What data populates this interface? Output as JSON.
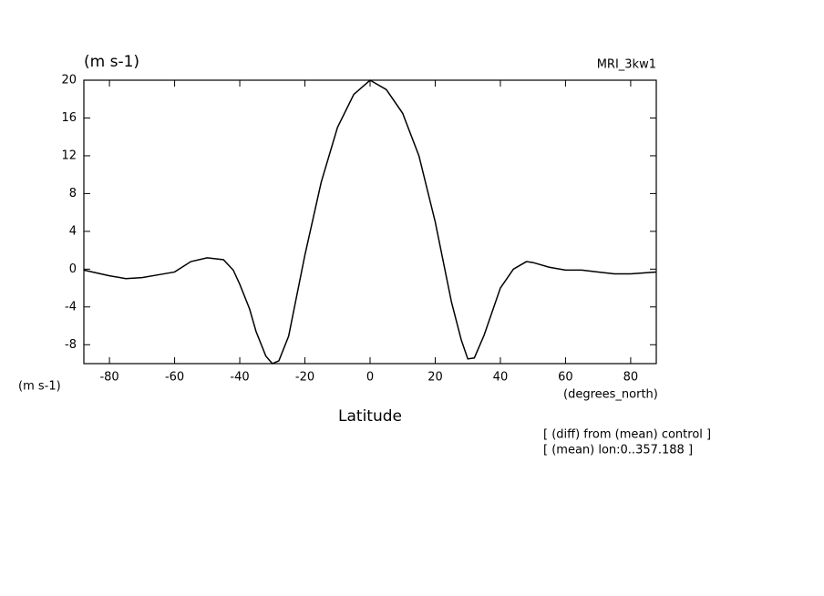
{
  "chart_data": {
    "type": "line",
    "title": "(m s-1)",
    "model": "MRI_3kw1",
    "yunits": "(m s-1)",
    "xunits": "(degrees_north)",
    "xlabel": "Latitude",
    "annotations": [
      "[ (diff) from (mean) control ]",
      "[ (mean) lon:0..357.188 ]"
    ],
    "xlim": [
      -87.86,
      87.86
    ],
    "ylim": [
      -10,
      20
    ],
    "xticks": [
      -80,
      -60,
      -40,
      -20,
      0,
      20,
      40,
      60,
      80
    ],
    "yticks": [
      -8,
      -4,
      0,
      4,
      8,
      12,
      16,
      20
    ],
    "series": [
      {
        "color": "#000000",
        "x": [
          -87.86,
          -80,
          -75,
          -70,
          -65,
          -60,
          -55,
          -50,
          -45,
          -42,
          -40,
          -37,
          -35,
          -32,
          -30,
          -28,
          -25,
          -20,
          -15,
          -10,
          -5,
          0,
          5,
          10,
          15,
          20,
          25,
          28,
          30,
          32,
          35,
          40,
          44,
          48,
          50,
          55,
          60,
          65,
          70,
          75,
          80,
          87.86
        ],
        "values": [
          -0.1,
          -0.7,
          -1.0,
          -0.9,
          -0.6,
          -0.3,
          0.8,
          1.2,
          1.0,
          -0.1,
          -1.6,
          -4.2,
          -6.6,
          -9.2,
          -10.0,
          -9.7,
          -7.1,
          1.5,
          9.2,
          15.0,
          18.5,
          20.0,
          19.0,
          16.5,
          12.0,
          5.0,
          -3.5,
          -7.5,
          -9.5,
          -9.4,
          -7.0,
          -2.0,
          0.0,
          0.8,
          0.7,
          0.2,
          -0.1,
          -0.1,
          -0.3,
          -0.5,
          -0.5,
          -0.3
        ]
      }
    ]
  }
}
